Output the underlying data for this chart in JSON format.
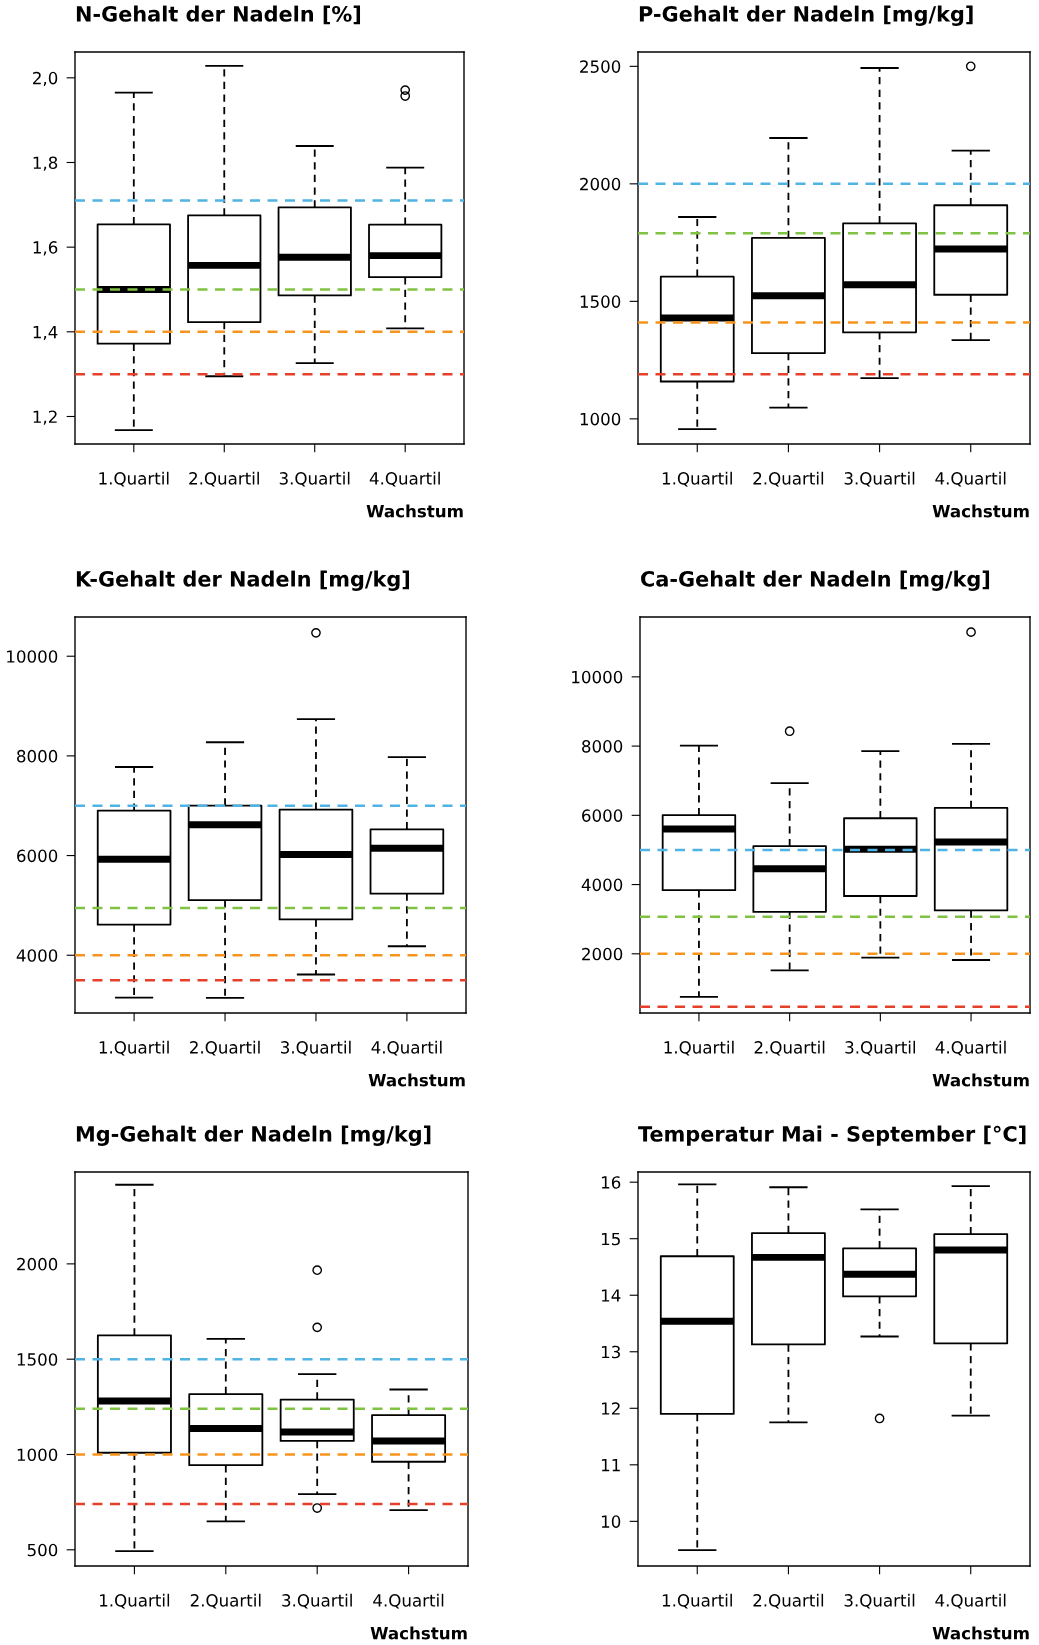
{
  "chart_data": [
    {
      "type": "box",
      "title": "N-Gehalt der Nadeln [%]",
      "xlabel": "Wachstum",
      "categories": [
        "1.Quartil",
        "2.Quartil",
        "3.Quartil",
        "4.Quartil"
      ],
      "boxes": [
        {
          "low": 1.168,
          "q1": 1.372,
          "median": 1.5,
          "q3": 1.654,
          "high": 1.965
        },
        {
          "low": 1.295,
          "q1": 1.423,
          "median": 1.557,
          "q3": 1.675,
          "high": 2.028
        },
        {
          "low": 1.326,
          "q1": 1.486,
          "median": 1.576,
          "q3": 1.694,
          "high": 1.839
        },
        {
          "low": 1.408,
          "q1": 1.529,
          "median": 1.58,
          "q3": 1.653,
          "high": 1.788,
          "outliers": [
            1.971,
            1.957
          ]
        }
      ],
      "ylim": [
        1.135,
        2.061
      ],
      "yticks": [
        {
          "value": 1.2,
          "label": "1,2"
        },
        {
          "value": 1.4,
          "label": "1,4"
        },
        {
          "value": 1.6,
          "label": "1,6"
        },
        {
          "value": 1.8,
          "label": "1,8"
        },
        {
          "value": 2.0,
          "label": "2,0"
        }
      ],
      "ref_lines": [
        {
          "axis": "y",
          "value": 1.71,
          "color": "#4fb3e3",
          "line_style": "dashed"
        },
        {
          "axis": "y",
          "value": 1.5,
          "color": "#80c342",
          "line_style": "dashed"
        },
        {
          "axis": "y",
          "value": 1.4,
          "color": "#f7941d",
          "line_style": "dashed"
        },
        {
          "axis": "y",
          "value": 1.3,
          "color": "#e5402a",
          "line_style": "dashed"
        }
      ],
      "grid": false,
      "legend": false
    },
    {
      "type": "box",
      "title": "P-Gehalt der Nadeln [mg/kg]",
      "xlabel": "Wachstum",
      "categories": [
        "1.Quartil",
        "2.Quartil",
        "3.Quartil",
        "4.Quartil"
      ],
      "boxes": [
        {
          "low": 956,
          "q1": 1159,
          "median": 1429,
          "q3": 1605,
          "high": 1859
        },
        {
          "low": 1048,
          "q1": 1280,
          "median": 1524,
          "q3": 1770,
          "high": 2195
        },
        {
          "low": 1173,
          "q1": 1368,
          "median": 1571,
          "q3": 1832,
          "high": 2493
        },
        {
          "low": 1335,
          "q1": 1528,
          "median": 1723,
          "q3": 1909,
          "high": 2141,
          "outliers": [
            2500
          ]
        }
      ],
      "ylim": [
        893,
        2561
      ],
      "yticks": [
        1000,
        1500,
        2000,
        2500
      ],
      "ref_lines": [
        {
          "axis": "y",
          "value": 2000,
          "color": "#4fb3e3",
          "line_style": "dashed"
        },
        {
          "axis": "y",
          "value": 1790,
          "color": "#80c342",
          "line_style": "dashed"
        },
        {
          "axis": "y",
          "value": 1410,
          "color": "#f7941d",
          "line_style": "dashed"
        },
        {
          "axis": "y",
          "value": 1190,
          "color": "#e5402a",
          "line_style": "dashed"
        }
      ],
      "grid": false,
      "legend": false
    },
    {
      "type": "box",
      "title": "K-Gehalt der Nadeln [mg/kg]",
      "xlabel": "Wachstum",
      "categories": [
        "1.Quartil",
        "2.Quartil",
        "3.Quartil",
        "4.Quartil"
      ],
      "boxes": [
        {
          "low": 3150,
          "q1": 4615,
          "median": 5927,
          "q3": 6900,
          "high": 7777
        },
        {
          "low": 3144,
          "q1": 5105,
          "median": 6617,
          "q3": 7004,
          "high": 8274
        },
        {
          "low": 3614,
          "q1": 4718,
          "median": 6023,
          "q3": 6921,
          "high": 8737,
          "outliers": [
            10469
          ]
        },
        {
          "low": 4180,
          "q1": 5236,
          "median": 6147,
          "q3": 6527,
          "high": 7977
        }
      ],
      "ylim": [
        2841,
        10787
      ],
      "yticks": [
        4000,
        6000,
        8000,
        10000
      ],
      "ref_lines": [
        {
          "axis": "y",
          "value": 7000,
          "color": "#4fb3e3",
          "line_style": "dashed"
        },
        {
          "axis": "y",
          "value": 4950,
          "color": "#80c342",
          "line_style": "dashed"
        },
        {
          "axis": "y",
          "value": 4000,
          "color": "#f7941d",
          "line_style": "dashed"
        },
        {
          "axis": "y",
          "value": 3500,
          "color": "#e5402a",
          "line_style": "dashed"
        }
      ],
      "grid": false,
      "legend": false
    },
    {
      "type": "box",
      "title": "Ca-Gehalt der Nadeln [mg/kg]",
      "xlabel": "Wachstum",
      "categories": [
        "1.Quartil",
        "2.Quartil",
        "3.Quartil",
        "4.Quartil"
      ],
      "boxes": [
        {
          "low": 758,
          "q1": 3838,
          "median": 5607,
          "q3": 6005,
          "high": 8012
        },
        {
          "low": 1523,
          "q1": 3212,
          "median": 4455,
          "q3": 5111,
          "high": 6929,
          "outliers": [
            8430
          ]
        },
        {
          "low": 1891,
          "q1": 3670,
          "median": 5021,
          "q3": 5915,
          "high": 7853
        },
        {
          "low": 1821,
          "q1": 3252,
          "median": 5230,
          "q3": 6214,
          "high": 8062,
          "outliers": [
            11292
          ]
        }
      ],
      "ylim": [
        290,
        11729
      ],
      "yticks": [
        2000,
        4000,
        6000,
        8000,
        10000
      ],
      "ref_lines": [
        {
          "axis": "y",
          "value": 5000,
          "color": "#4fb3e3",
          "line_style": "dashed"
        },
        {
          "axis": "y",
          "value": 3070,
          "color": "#80c342",
          "line_style": "dashed"
        },
        {
          "axis": "y",
          "value": 2000,
          "color": "#f7941d",
          "line_style": "dashed"
        },
        {
          "axis": "y",
          "value": 470,
          "color": "#e5402a",
          "line_style": "dashed"
        }
      ],
      "grid": false,
      "legend": false
    },
    {
      "type": "box",
      "title": "Mg-Gehalt der Nadeln [mg/kg]",
      "xlabel": "Wachstum",
      "categories": [
        "1.Quartil",
        "2.Quartil",
        "3.Quartil",
        "4.Quartil"
      ],
      "boxes": [
        {
          "low": 493,
          "q1": 1009,
          "median": 1281,
          "q3": 1625,
          "high": 2415
        },
        {
          "low": 649,
          "q1": 944,
          "median": 1136,
          "q3": 1317,
          "high": 1607
        },
        {
          "low": 792,
          "q1": 1071,
          "median": 1118,
          "q3": 1288,
          "high": 1422,
          "outliers": [
            1967,
            1667,
            719
          ]
        },
        {
          "low": 708,
          "q1": 962,
          "median": 1071,
          "q3": 1207,
          "high": 1341
        }
      ],
      "ylim": [
        415,
        2482
      ],
      "yticks": [
        500,
        1000,
        1500,
        2000
      ],
      "ref_lines": [
        {
          "axis": "y",
          "value": 1500,
          "color": "#4fb3e3",
          "line_style": "dashed"
        },
        {
          "axis": "y",
          "value": 1240,
          "color": "#80c342",
          "line_style": "dashed"
        },
        {
          "axis": "y",
          "value": 1000,
          "color": "#f7941d",
          "line_style": "dashed"
        },
        {
          "axis": "y",
          "value": 740,
          "color": "#e5402a",
          "line_style": "dashed"
        }
      ],
      "grid": false,
      "legend": false
    },
    {
      "type": "box",
      "title": "Temperatur Mai - September [°C]",
      "xlabel": "Wachstum",
      "categories": [
        "1.Quartil",
        "2.Quartil",
        "3.Quartil",
        "4.Quartil"
      ],
      "boxes": [
        {
          "low": 9.49,
          "q1": 11.9,
          "median": 13.54,
          "q3": 14.69,
          "high": 15.96
        },
        {
          "low": 11.75,
          "q1": 13.13,
          "median": 14.67,
          "q3": 15.1,
          "high": 15.91
        },
        {
          "low": 13.27,
          "q1": 13.98,
          "median": 14.37,
          "q3": 14.83,
          "high": 15.52,
          "outliers": [
            11.82
          ]
        },
        {
          "low": 11.87,
          "q1": 13.15,
          "median": 14.8,
          "q3": 15.08,
          "high": 15.93
        }
      ],
      "ylim": [
        9.21,
        16.18
      ],
      "yticks": [
        10,
        11,
        12,
        13,
        14,
        15,
        16
      ],
      "grid": false,
      "legend": false
    }
  ]
}
